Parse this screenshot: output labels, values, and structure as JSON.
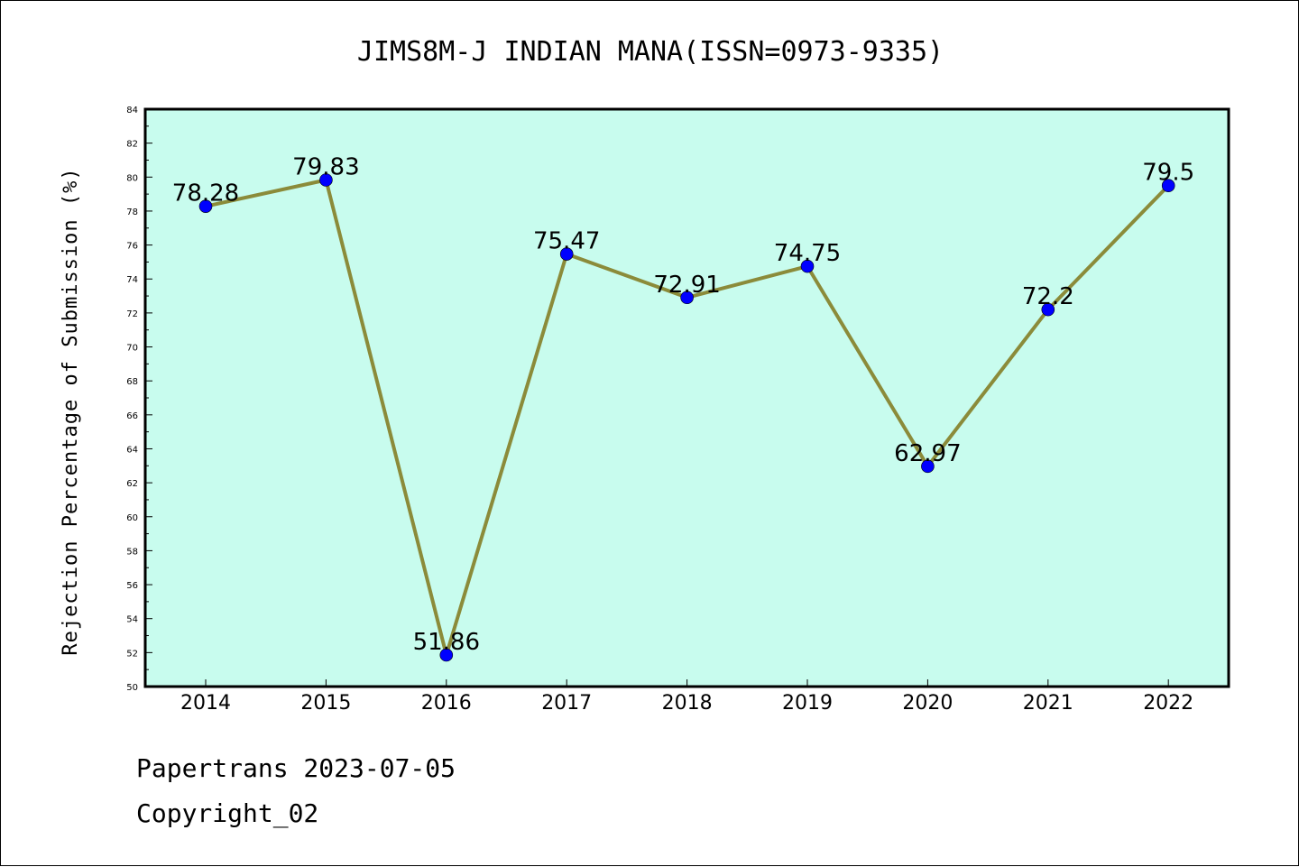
{
  "chart_data": {
    "type": "line",
    "title": "JIMS8M-J INDIAN MANA(ISSN=0973-9335)",
    "ylabel": "Rejection Percentage of Submission (%)",
    "xlabel": "",
    "categories": [
      "2014",
      "2015",
      "2016",
      "2017",
      "2018",
      "2019",
      "2020",
      "2021",
      "2022"
    ],
    "values": [
      78.28,
      79.83,
      51.86,
      75.47,
      72.91,
      74.75,
      62.97,
      72.2,
      79.5
    ],
    "data_labels": [
      "78.28",
      "79.83",
      "51.86",
      "75.47",
      "72.91",
      "74.75",
      "62.97",
      "72.2",
      "79.5"
    ],
    "ylim": [
      50,
      84
    ],
    "yticks": [
      "50",
      "52",
      "54",
      "56",
      "58",
      "60",
      "62",
      "64",
      "66",
      "68",
      "70",
      "72",
      "74",
      "76",
      "78",
      "80",
      "82",
      "84"
    ],
    "grid": false,
    "colors": {
      "plot_background": "#c8fcee",
      "line": "#8b8b3a",
      "marker": "#0000ff"
    }
  },
  "footer": {
    "line1": "Papertrans 2023-07-05",
    "line2": "Copyright_02"
  }
}
